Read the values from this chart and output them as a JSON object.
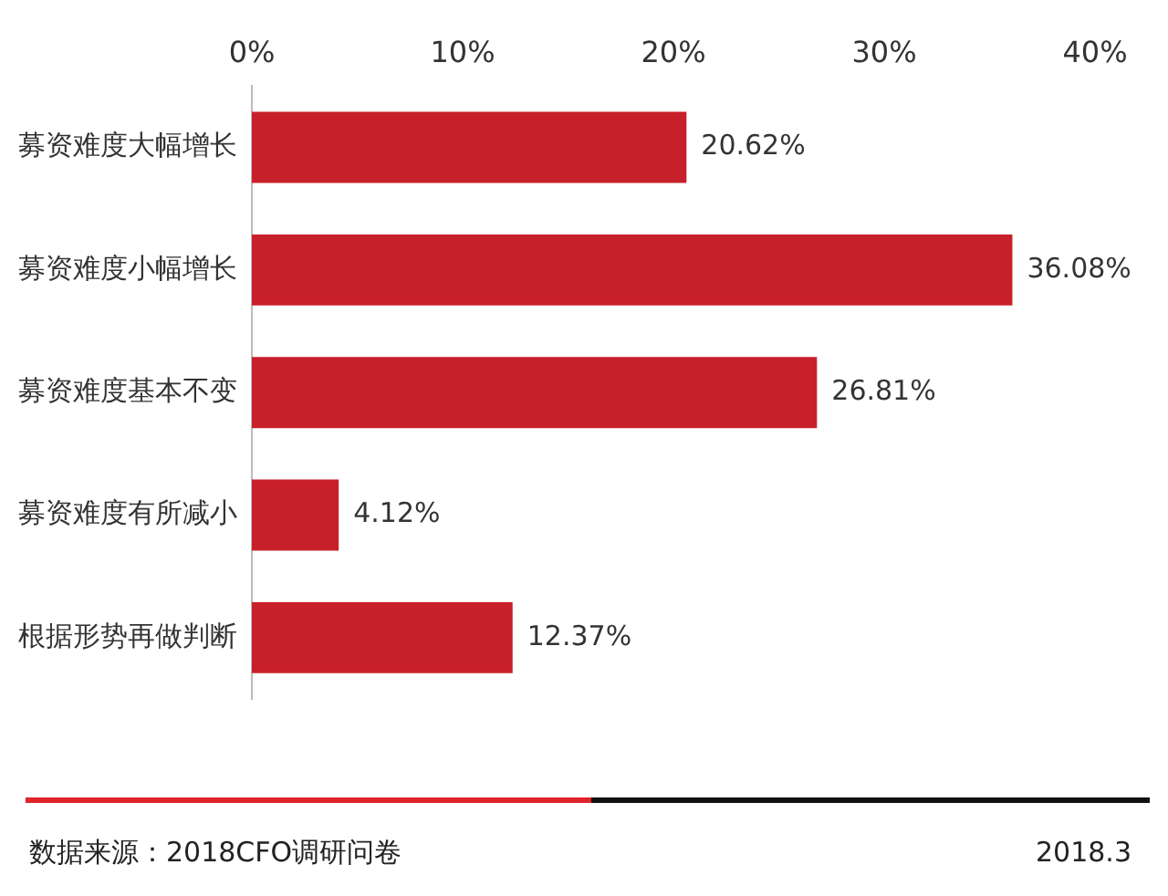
{
  "chart_data": {
    "type": "bar",
    "orientation": "horizontal",
    "categories": [
      "募资难度大幅增长",
      "募资难度小幅增长",
      "募资难度基本不变",
      "募资难度有所减小",
      "根据形势再做判断"
    ],
    "values": [
      20.62,
      36.08,
      26.81,
      4.12,
      12.37
    ],
    "value_labels": [
      "20.62%",
      "36.08%",
      "26.81%",
      "4.12%",
      "12.37%"
    ],
    "color": "#c8202b",
    "xlim": [
      0,
      40
    ],
    "xticks": [
      {
        "value": 0,
        "label": "0%"
      },
      {
        "value": 10,
        "label": "10%"
      },
      {
        "value": 20,
        "label": "20%"
      },
      {
        "value": 30,
        "label": "30%"
      },
      {
        "value": 40,
        "label": "40%"
      }
    ],
    "grid": false,
    "legend": false,
    "annotations": [
      "数据来源：2018CFO调研问卷",
      "2018.3"
    ]
  }
}
